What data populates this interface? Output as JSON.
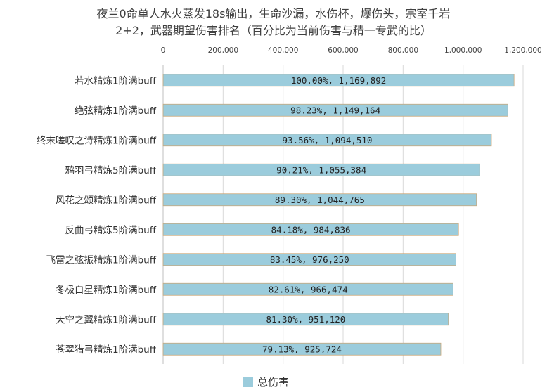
{
  "chart_data": {
    "type": "bar",
    "orientation": "horizontal",
    "title_line1": "夜兰0命单人水火蒸发18s输出，生命沙漏，水伤杯，爆伤头，宗室千岩",
    "title_line2": "2+2，武器期望伤害排名（百分比为当前伤害与精一专武的比）",
    "categories": [
      "若水精炼1阶满buff",
      "绝弦精炼1阶满buff",
      "终末嗟叹之诗精炼1阶满buff",
      "鸦羽弓精炼5阶满buff",
      "风花之颂精炼1阶满buff",
      "反曲弓精炼5阶满buff",
      "飞雷之弦振精炼1阶满buff",
      "冬极白星精炼1阶满buff",
      "天空之翼精炼1阶满buff",
      "苍翠猎弓精炼1阶满buff"
    ],
    "series": [
      {
        "name": "总伤害",
        "values": [
          1169892,
          1149164,
          1094510,
          1055384,
          1044765,
          984836,
          976250,
          966474,
          951120,
          925724
        ],
        "labels": [
          "100.00%, 1,169,892",
          "98.23%, 1,149,164",
          "93.56%, 1,094,510",
          "90.21%, 1,055,384",
          "89.30%, 1,044,765",
          "84.18%, 984,836",
          "83.45%, 976,250",
          "82.61%, 966,474",
          "81.30%, 951,120",
          "79.13%, 925,724"
        ]
      }
    ],
    "x_ticks": [
      "0",
      "200,000",
      "400,000",
      "600,000",
      "800,000",
      "1,000,000",
      "1,200,000"
    ],
    "xlim": [
      0,
      1200000
    ],
    "x_axis_position": "top",
    "grid": true,
    "legend_position": "bottom",
    "colors": {
      "bar": "#9BCCDC",
      "bar_edge": "#C9A77A",
      "grid": "#D9D9D9"
    }
  }
}
